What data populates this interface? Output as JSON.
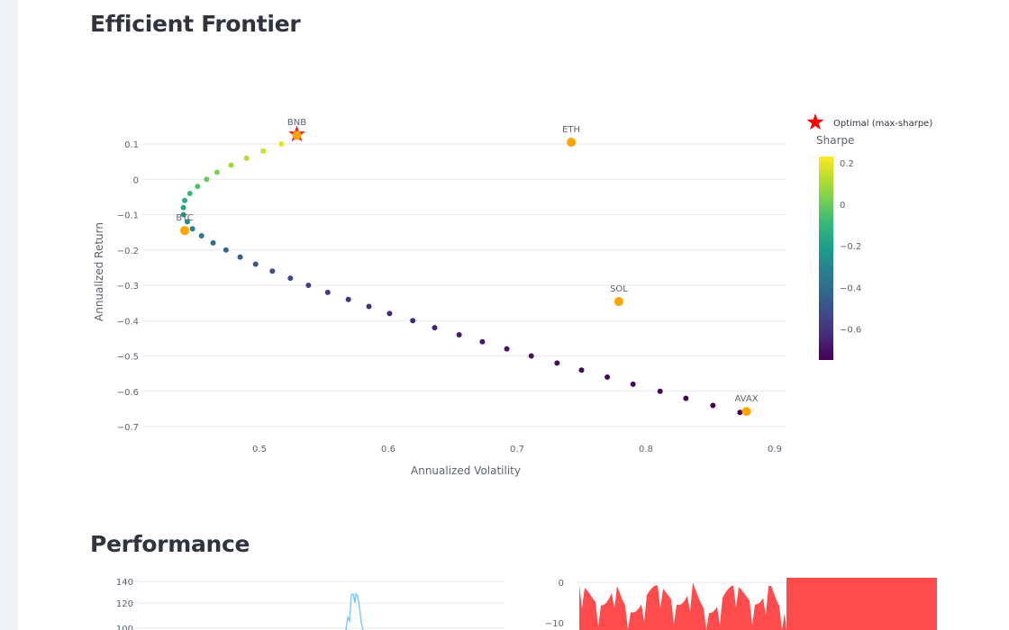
{
  "sections": {
    "frontier_title": "Efficient Frontier",
    "performance_title": "Performance"
  },
  "chart_data": [
    {
      "type": "scatter",
      "xlabel": "Annualized Volatility",
      "ylabel": "Annualized Return",
      "xlim": [
        0.41,
        0.91
      ],
      "ylim": [
        -0.73,
        0.14
      ],
      "xticks": [
        "0.5",
        "0.6",
        "0.7",
        "0.8",
        "0.9"
      ],
      "yticks": [
        "0.1",
        "0",
        "−0.1",
        "−0.2",
        "−0.3",
        "−0.4",
        "−0.5",
        "−0.6",
        "−0.7"
      ],
      "grid": true,
      "frontier": {
        "vol": [
          0.873,
          0.852,
          0.831,
          0.811,
          0.79,
          0.77,
          0.75,
          0.731,
          0.711,
          0.692,
          0.673,
          0.655,
          0.636,
          0.619,
          0.601,
          0.585,
          0.569,
          0.553,
          0.538,
          0.524,
          0.51,
          0.497,
          0.485,
          0.474,
          0.464,
          0.455,
          0.448,
          0.444,
          0.441,
          0.441,
          0.442,
          0.446,
          0.452,
          0.459,
          0.467,
          0.478,
          0.49,
          0.503,
          0.517,
          0.53
        ],
        "ret": [
          -0.66,
          -0.64,
          -0.62,
          -0.6,
          -0.58,
          -0.56,
          -0.54,
          -0.52,
          -0.5,
          -0.48,
          -0.46,
          -0.44,
          -0.42,
          -0.4,
          -0.38,
          -0.36,
          -0.34,
          -0.32,
          -0.3,
          -0.28,
          -0.26,
          -0.24,
          -0.22,
          -0.2,
          -0.18,
          -0.16,
          -0.14,
          -0.12,
          -0.1,
          -0.08,
          -0.06,
          -0.04,
          -0.02,
          0,
          0.02,
          0.04,
          0.06,
          0.08,
          0.1,
          0.12
        ]
      },
      "assets": [
        {
          "name": "BNB",
          "vol": 0.529,
          "ret": 0.125
        },
        {
          "name": "ETH",
          "vol": 0.742,
          "ret": 0.105
        },
        {
          "name": "SOL",
          "vol": 0.779,
          "ret": -0.346
        },
        {
          "name": "AVAX",
          "vol": 0.878,
          "ret": -0.657
        },
        {
          "name": "BTC",
          "vol": 0.442,
          "ret": -0.145
        }
      ],
      "optimal": {
        "vol": 0.529,
        "ret": 0.125
      },
      "legend": {
        "optimal_label": "Optimal (max-sharpe)",
        "position": "top-right"
      },
      "colorbar": {
        "title": "Sharpe",
        "range": [
          -0.75,
          0.23
        ],
        "ticks": [
          "0.2",
          "0",
          "−0.2",
          "−0.4",
          "−0.6"
        ],
        "tick_values": [
          0.2,
          0,
          -0.2,
          -0.4,
          -0.6
        ],
        "colorscale": "Viridis"
      },
      "colors": {
        "asset": "#ffa500",
        "optimal": "#ff0000"
      }
    },
    {
      "type": "line",
      "yticks": [
        "140",
        "120",
        "100"
      ],
      "tick_values": [
        140,
        120,
        100
      ],
      "color": "#83c9ff"
    },
    {
      "type": "area",
      "yticks": [
        "0",
        "−10"
      ],
      "tick_values": [
        0,
        -10
      ],
      "color": "#ff4b4b"
    }
  ]
}
